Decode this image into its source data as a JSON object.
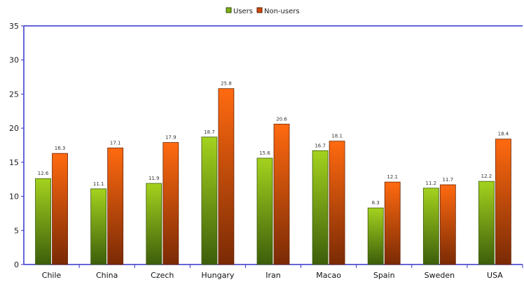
{
  "chart_data": {
    "type": "bar",
    "categories": [
      "Chile",
      "China",
      "Czech",
      "Hungary",
      "Iran",
      "Macao",
      "Spain",
      "Sweden",
      "USA"
    ],
    "series": [
      {
        "name": "Users",
        "values": [
          12.6,
          11.1,
          11.9,
          18.7,
          15.6,
          16.7,
          8.3,
          11.2,
          12.2
        ]
      },
      {
        "name": "Non-users",
        "values": [
          16.3,
          17.1,
          17.9,
          25.8,
          20.6,
          18.1,
          12.1,
          11.7,
          18.4
        ]
      }
    ],
    "title": "",
    "xlabel": "",
    "ylabel": "",
    "ylim": [
      0,
      35
    ],
    "yticks": [
      0,
      5,
      10,
      15,
      20,
      25,
      30,
      35
    ],
    "grid": false,
    "legend_position": "top-center",
    "colors": {
      "users_top": "#a4d21e",
      "users_bottom": "#3d5e0b",
      "nonusers_top": "#ff6a10",
      "nonusers_bottom": "#7a2a05",
      "axis": "#3333cc"
    }
  }
}
